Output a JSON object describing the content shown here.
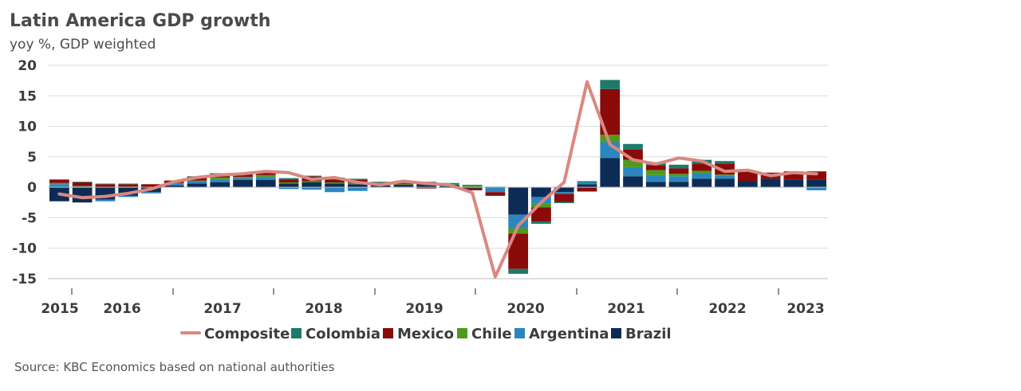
{
  "header": {
    "title": "Latin America GDP growth",
    "subtitle": "yoy %, GDP weighted"
  },
  "footer": {
    "source": "Source: KBC Economics based on national authorities"
  },
  "colors": {
    "Composite": "#d98880",
    "Colombia": "#1e7a6a",
    "Mexico": "#8b0a0a",
    "Chile": "#4f9a1e",
    "Argentina": "#2b86c0",
    "Brazil": "#0d2c55"
  },
  "chart_data": {
    "type": "bar",
    "stacked": true,
    "x_labels": [
      "2015",
      "2016",
      "2017",
      "2018",
      "2019",
      "2020",
      "2021",
      "2022",
      "2023"
    ],
    "categories": [
      "Q1 2015",
      "Q2 2015",
      "Q3 2015",
      "Q4 2015",
      "Q1 2016",
      "Q2 2016",
      "Q3 2016",
      "Q4 2016",
      "Q1 2017",
      "Q2 2017",
      "Q3 2017",
      "Q4 2017",
      "Q1 2018",
      "Q2 2018",
      "Q3 2018",
      "Q4 2018",
      "Q1 2019",
      "Q2 2019",
      "Q3 2019",
      "Q4 2019",
      "Q1 2020",
      "Q2 2020",
      "Q3 2020",
      "Q4 2020",
      "Q1 2021",
      "Q2 2021",
      "Q3 2021",
      "Q4 2021",
      "Q1 2022",
      "Q2 2022",
      "Q3 2022",
      "Q4 2022",
      "Q1 2023",
      "Q2 2023"
    ],
    "series": [
      {
        "name": "Brazil",
        "values": [
          -2.3,
          -2.5,
          -2.0,
          -1.4,
          -0.8,
          0.3,
          0.6,
          0.8,
          1.2,
          1.2,
          0.6,
          0.8,
          0.6,
          0.5,
          0.3,
          0.4,
          0.6,
          0.4,
          -0.2,
          -0.1,
          -4.5,
          -1.6,
          -0.8,
          0.5,
          4.8,
          1.8,
          0.9,
          0.9,
          1.4,
          1.4,
          1.0,
          1.4,
          1.3,
          1.3
        ]
      },
      {
        "name": "Argentina",
        "values": [
          0.5,
          0.1,
          -0.3,
          -0.2,
          -0.2,
          0.3,
          0.4,
          0.5,
          0.3,
          0.5,
          -0.3,
          -0.4,
          -0.8,
          -0.6,
          0.0,
          0.0,
          0.0,
          0.0,
          0.0,
          -0.7,
          -2.2,
          -1.0,
          -0.3,
          0.3,
          2.6,
          1.5,
          1.1,
          0.9,
          0.9,
          0.5,
          0.0,
          0.0,
          0.0,
          -0.5
        ]
      },
      {
        "name": "Chile",
        "values": [
          0.2,
          0.1,
          0.0,
          0.1,
          0.0,
          0.1,
          0.1,
          0.3,
          0.2,
          0.3,
          0.2,
          0.2,
          0.2,
          0.2,
          0.1,
          0.1,
          0.1,
          0.1,
          0.2,
          0.0,
          -0.9,
          -0.7,
          0.0,
          0.0,
          1.2,
          1.2,
          0.8,
          0.4,
          0.4,
          0.2,
          0.0,
          0.0,
          0.0,
          0.0
        ]
      },
      {
        "name": "Mexico",
        "values": [
          0.5,
          0.6,
          0.5,
          0.4,
          0.5,
          0.4,
          0.6,
          0.6,
          0.5,
          0.5,
          0.5,
          0.8,
          0.5,
          0.5,
          0.3,
          0.1,
          -0.2,
          -0.1,
          -0.3,
          -0.6,
          -5.8,
          -2.3,
          -1.3,
          -0.7,
          7.5,
          1.7,
          0.8,
          0.9,
          1.2,
          1.8,
          1.6,
          1.0,
          1.3,
          1.3
        ]
      },
      {
        "name": "Colombia",
        "values": [
          0.1,
          0.1,
          0.1,
          0.1,
          0.0,
          0.0,
          0.1,
          0.1,
          0.1,
          0.1,
          0.2,
          0.1,
          0.3,
          0.2,
          0.2,
          0.2,
          0.2,
          0.2,
          0.2,
          0.1,
          -0.8,
          -0.4,
          -0.2,
          0.2,
          1.5,
          0.9,
          0.5,
          0.6,
          0.6,
          0.4,
          0.0,
          0.0,
          0.0,
          0.0
        ]
      },
      {
        "name": "Composite",
        "type": "line",
        "values": [
          -1.1,
          -1.7,
          -1.5,
          -1.0,
          -0.3,
          0.9,
          1.6,
          2.0,
          2.2,
          2.6,
          2.4,
          1.3,
          1.6,
          0.8,
          0.4,
          1.0,
          0.6,
          0.4,
          -0.9,
          -14.7,
          -6.3,
          -2.5,
          0.8,
          17.3,
          7.0,
          4.5,
          3.8,
          4.8,
          4.3,
          2.6,
          2.8,
          1.9,
          2.4,
          2.2
        ]
      }
    ],
    "ylim": [
      -15,
      20
    ],
    "yticks": [
      -15,
      -10,
      -5,
      0,
      5,
      10,
      15,
      20
    ],
    "grid": true,
    "legend": {
      "position": "bottom",
      "order": [
        "Composite",
        "Colombia",
        "Mexico",
        "Chile",
        "Argentina",
        "Brazil"
      ]
    }
  }
}
